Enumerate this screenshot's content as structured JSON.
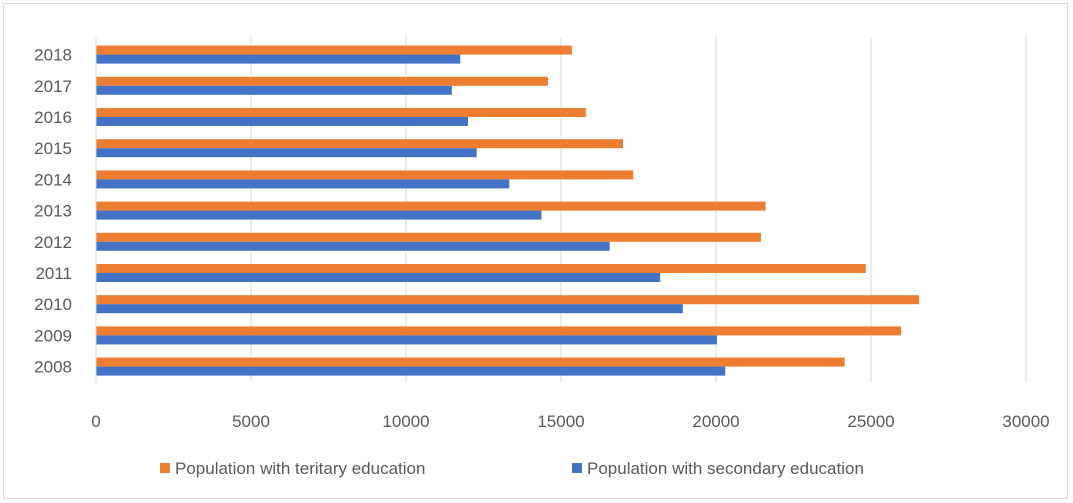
{
  "chart_data": {
    "type": "bar",
    "orientation": "horizontal",
    "categories": [
      "2008",
      "2009",
      "2010",
      "2011",
      "2012",
      "2013",
      "2014",
      "2015",
      "2016",
      "2017",
      "2018"
    ],
    "series": [
      {
        "name": "Population with teritary education",
        "color": "#ED7D31",
        "values": [
          24150,
          25970,
          26550,
          24830,
          21450,
          21600,
          17330,
          17000,
          15800,
          14580,
          15350
        ]
      },
      {
        "name": "Population with secondary education",
        "color": "#4472C4",
        "values": [
          20300,
          20030,
          18930,
          18200,
          16570,
          14370,
          13330,
          12280,
          12000,
          11480,
          11750
        ]
      }
    ],
    "xlim": [
      0,
      30000
    ],
    "xticks": [
      "0",
      "5000",
      "10000",
      "15000",
      "20000",
      "25000",
      "30000"
    ],
    "grid": true,
    "legend": "bottom"
  }
}
